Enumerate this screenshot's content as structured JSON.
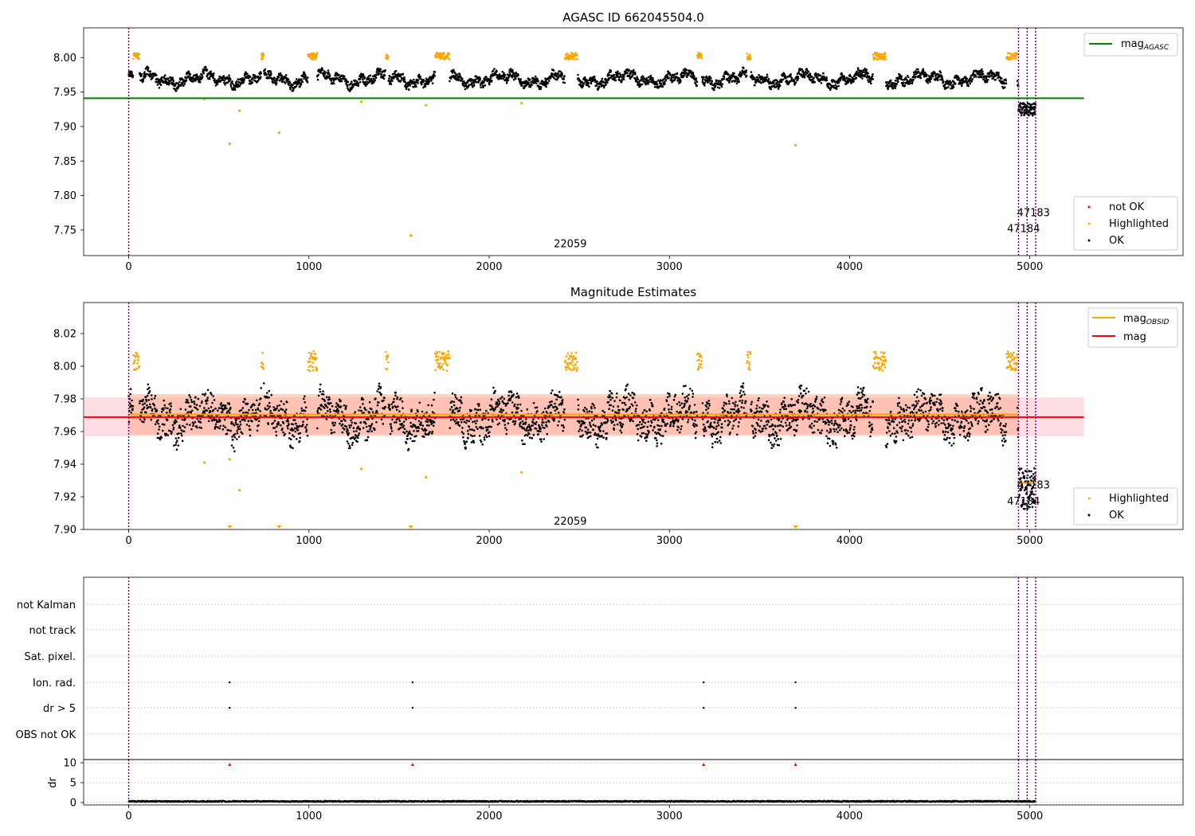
{
  "chart_data": [
    {
      "type": "scatter",
      "title": "AGASC ID 662045504.0",
      "xlim": [
        -250,
        5850
      ],
      "ylim": [
        7.713,
        8.043
      ],
      "xticks": [
        0,
        1000,
        2000,
        3000,
        4000,
        5000
      ],
      "yticks": [
        7.75,
        7.8,
        7.85,
        7.9,
        7.95,
        8.0
      ],
      "ytick_labels": [
        "7.75",
        "7.80",
        "7.85",
        "7.90",
        "7.95",
        "8.00"
      ],
      "hlines": [
        {
          "name": "mag$_{AGASC}$",
          "label_main": "mag",
          "label_sub": "AGASC",
          "y": 7.941,
          "x_range": [
            -250,
            5300
          ],
          "color": "#008000"
        }
      ],
      "vlines_x": [
        0,
        4937,
        4985,
        5032
      ],
      "annotations": [
        {
          "text": "22059",
          "x": 2450,
          "y": 7.725
        },
        {
          "text": "47183",
          "x": 5020,
          "y": 7.77
        },
        {
          "text": "47184",
          "x": 4965,
          "y": 7.747
        }
      ],
      "legend": {
        "position": "lower right",
        "entries": [
          "not OK",
          "Highlighted",
          "OK"
        ]
      },
      "outliers": [
        {
          "x": 420,
          "y": 7.94
        },
        {
          "x": 560,
          "y": 7.875
        },
        {
          "x": 615,
          "y": 7.923
        },
        {
          "x": 835,
          "y": 7.891
        },
        {
          "x": 1290,
          "y": 7.936
        },
        {
          "x": 1565,
          "y": 7.742
        },
        {
          "x": 1650,
          "y": 7.931
        },
        {
          "x": 2180,
          "y": 7.934
        },
        {
          "x": 3700,
          "y": 7.873
        }
      ]
    },
    {
      "type": "scatter",
      "title": "Magnitude Estimates",
      "xlim": [
        -250,
        5850
      ],
      "ylim": [
        7.9,
        8.039
      ],
      "xticks": [
        0,
        1000,
        2000,
        3000,
        4000,
        5000
      ],
      "yticks": [
        7.9,
        7.92,
        7.94,
        7.96,
        7.98,
        8.0,
        8.02
      ],
      "ytick_labels": [
        "7.90",
        "7.92",
        "7.94",
        "7.96",
        "7.98",
        "8.00",
        "8.02"
      ],
      "hlines": [
        {
          "name": "mag$_{OBSID}$",
          "label_main": "mag",
          "label_sub": "OBSID",
          "y": 7.9705,
          "x_range": [
            0,
            4937
          ],
          "color": "#ffa500"
        },
        {
          "name": "mag",
          "label_main": "mag",
          "label_sub": "",
          "y": 7.9688,
          "x_range": [
            -250,
            5300
          ],
          "color": "#ff0000"
        }
      ],
      "bands": [
        {
          "y0": 7.957,
          "y1": 7.981,
          "x_range": [
            -250,
            5300
          ],
          "color": "#ffb6c1"
        },
        {
          "y0": 7.958,
          "y1": 7.983,
          "x_range": [
            0,
            4937
          ],
          "color": "#ffa07a"
        }
      ],
      "vlines_x": [
        0,
        4937,
        4985,
        5032
      ],
      "annotations": [
        {
          "text": "22059",
          "x": 2450,
          "y": 7.903
        },
        {
          "text": "47183",
          "x": 5020,
          "y": 7.925
        },
        {
          "text": "47184",
          "x": 4965,
          "y": 7.915
        }
      ],
      "legend": {
        "position": "lower right",
        "entries": [
          "Highlighted",
          "OK"
        ]
      },
      "outliers": [
        {
          "x": 420,
          "y": 7.941
        },
        {
          "x": 560,
          "y": 7.943
        },
        {
          "x": 615,
          "y": 7.924
        },
        {
          "x": 1290,
          "y": 7.937
        },
        {
          "x": 1650,
          "y": 7.932
        },
        {
          "x": 2180,
          "y": 7.935
        }
      ],
      "offscale_markers_x": [
        560,
        835,
        1565,
        3700
      ]
    },
    {
      "type": "scatter",
      "title": "",
      "xlim": [
        -250,
        5850
      ],
      "categories": [
        "not Kalman",
        "not track",
        "Sat. pixel.",
        "Ion. rad.",
        "dr > 5",
        "OBS not OK"
      ],
      "flag_points": [
        {
          "category": "Ion. rad.",
          "x": [
            560,
            1575,
            3190,
            3700
          ]
        },
        {
          "category": "dr > 5",
          "x": [
            560,
            1575,
            3190,
            3700
          ]
        }
      ],
      "vlines_x": [
        0,
        4937,
        4985,
        5032
      ]
    },
    {
      "type": "scatter",
      "title": "",
      "ylabel": "dr",
      "xlim": [
        -250,
        5850
      ],
      "ylim": [
        -0.6,
        10.8
      ],
      "xticks": [
        0,
        1000,
        2000,
        3000,
        4000,
        5000
      ],
      "yticks": [
        0,
        5,
        10
      ],
      "ytick_labels": [
        "0",
        "5",
        "10"
      ],
      "clipped_markers_x": [
        560,
        1575,
        3190,
        3700
      ],
      "vlines_x": [
        0,
        4937,
        4985,
        5032
      ]
    }
  ],
  "colors": {
    "ok": "#000000",
    "highlighted": "#ffa500",
    "not_ok": "#ff0000",
    "agasc_line": "#008000",
    "obs_line": "#ffa500",
    "mag_line": "#ff0000",
    "vline": "#800080"
  }
}
